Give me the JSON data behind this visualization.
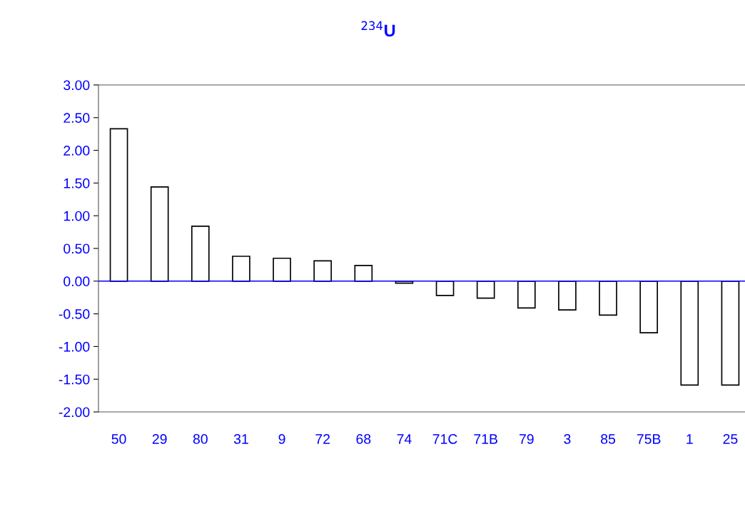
{
  "chart_data": {
    "type": "bar",
    "title": "$^{234}$U",
    "categories": [
      "50",
      "29",
      "80",
      "31",
      "9",
      "72",
      "68",
      "74",
      "71C",
      "71B",
      "79",
      "3",
      "85",
      "75B",
      "1",
      "25"
    ],
    "values": [
      2.33,
      1.44,
      0.84,
      0.38,
      0.35,
      0.31,
      0.24,
      -0.03,
      -0.22,
      -0.26,
      -0.41,
      -0.44,
      -0.52,
      -0.79,
      -1.59,
      -1.59
    ],
    "color": "#ffffff",
    "ylim": [
      -2.0,
      3.0
    ],
    "yticks": [
      {
        "value": -2.0,
        "label": "-2.00"
      },
      {
        "value": -1.5,
        "label": "-1.50"
      },
      {
        "value": -1.0,
        "label": "-1.00"
      },
      {
        "value": -0.5,
        "label": "-0.50"
      },
      {
        "value": 0.0,
        "label": "0.00"
      },
      {
        "value": 0.5,
        "label": "0.50"
      },
      {
        "value": 1.0,
        "label": "1.00"
      },
      {
        "value": 1.5,
        "label": "1.50"
      },
      {
        "value": 2.0,
        "label": "2.00"
      },
      {
        "value": 2.5,
        "label": "2.50"
      },
      {
        "value": 3.0,
        "label": "3.00"
      }
    ],
    "ref_lines": [
      {
        "axis": "y",
        "value": 0,
        "color": "#0000ff"
      }
    ],
    "grid": false
  }
}
